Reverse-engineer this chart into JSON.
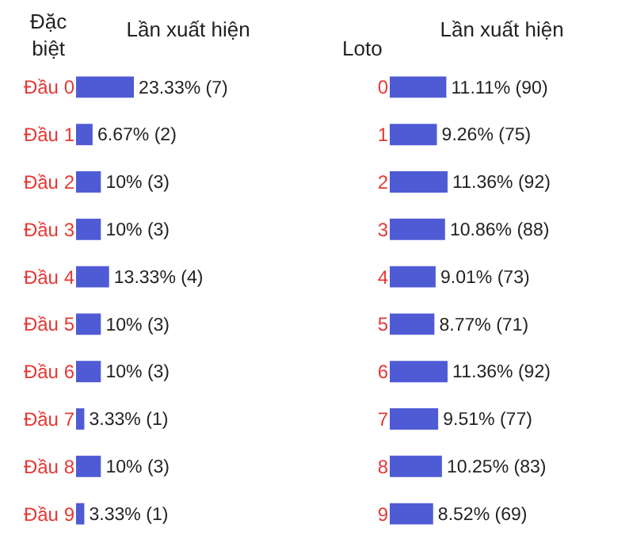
{
  "chart_data": [
    {
      "type": "bar",
      "orientation": "horizontal",
      "title": "Lần xuất hiện",
      "ylabel": "Đặc biệt",
      "color": "#4f5bd5",
      "categories": [
        "Đầu 0",
        "Đầu 1",
        "Đầu 2",
        "Đầu 3",
        "Đầu 4",
        "Đầu 5",
        "Đầu 6",
        "Đầu 7",
        "Đầu 8",
        "Đầu 9"
      ],
      "values": [
        23.33,
        6.67,
        10,
        10,
        13.33,
        10,
        10,
        3.33,
        10,
        3.33
      ],
      "value_labels": [
        "23.33% (7)",
        "6.67% (2)",
        "10% (3)",
        "10% (3)",
        "13.33% (4)",
        "10% (3)",
        "10% (3)",
        "3.33% (1)",
        "10% (3)",
        "3.33% (1)"
      ]
    },
    {
      "type": "bar",
      "orientation": "horizontal",
      "title": "Lần xuất hiện",
      "ylabel": "Loto",
      "color": "#4f5bd5",
      "categories": [
        "0",
        "1",
        "2",
        "3",
        "4",
        "5",
        "6",
        "7",
        "8",
        "9"
      ],
      "values": [
        11.11,
        9.26,
        11.36,
        10.86,
        9.01,
        8.77,
        11.36,
        9.51,
        10.25,
        8.52
      ],
      "value_labels": [
        "11.11% (90)",
        "9.26% (75)",
        "11.36% (92)",
        "10.86% (88)",
        "9.01% (73)",
        "8.77% (71)",
        "11.36% (92)",
        "9.51% (77)",
        "10.25% (83)",
        "8.52% (69)"
      ]
    }
  ]
}
